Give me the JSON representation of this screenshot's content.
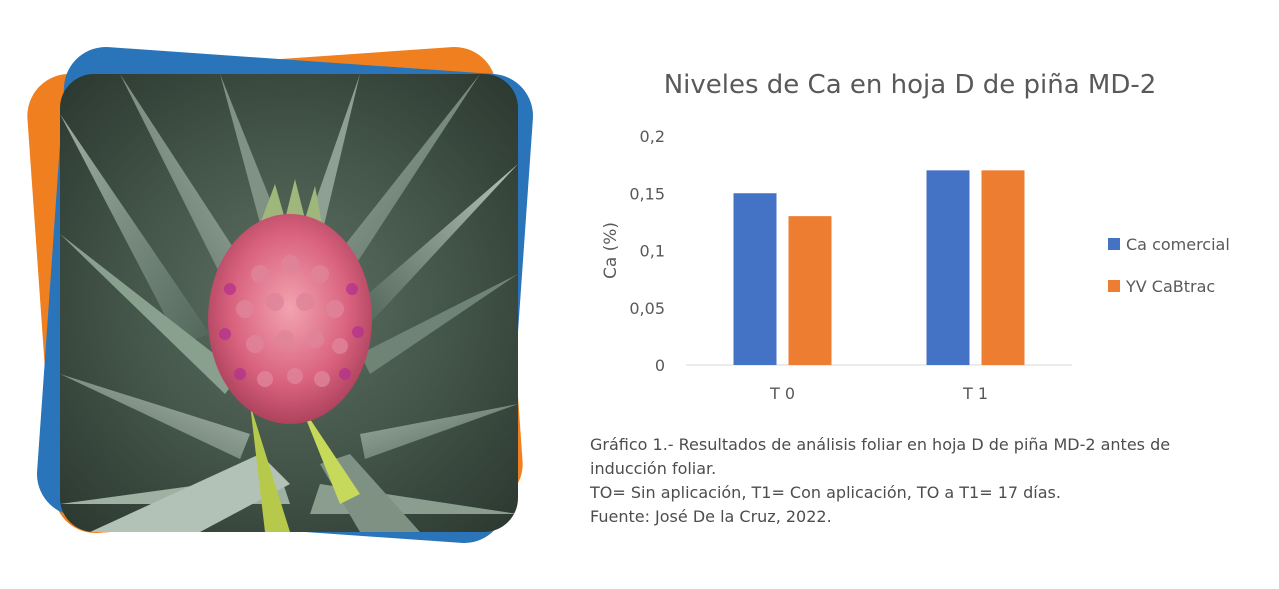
{
  "chart_data": {
    "type": "bar",
    "title": "Niveles de Ca en hoja D de piña MD-2",
    "ylabel": "Ca (%)",
    "xlabel": "",
    "categories": [
      "T 0",
      "T 1"
    ],
    "series": [
      {
        "name": "Ca comercial",
        "values": [
          0.15,
          0.17
        ],
        "color": "#4472c4"
      },
      {
        "name": "YV CaBtrac",
        "values": [
          0.13,
          0.17
        ],
        "color": "#ed7d31"
      }
    ],
    "ylim": [
      0,
      0.2
    ],
    "yticks": [
      0,
      0.05,
      0.1,
      0.15,
      0.2
    ],
    "ytick_labels": [
      "0",
      "0,05",
      "0,1",
      "0,15",
      "0,2"
    ],
    "grid": false,
    "legend_position": "right"
  },
  "caption": {
    "line1": "Gráfico 1.- Resultados de análisis foliar en hoja D de piña MD-2 antes de inducción foliar.",
    "line2": "TO= Sin aplicación, T1= Con aplicación, TO a T1= 17 días.",
    "line3": "Fuente: José De la Cruz, 2022."
  },
  "colors": {
    "frame_orange": "#f07f1f",
    "frame_blue": "#2a74b9"
  }
}
